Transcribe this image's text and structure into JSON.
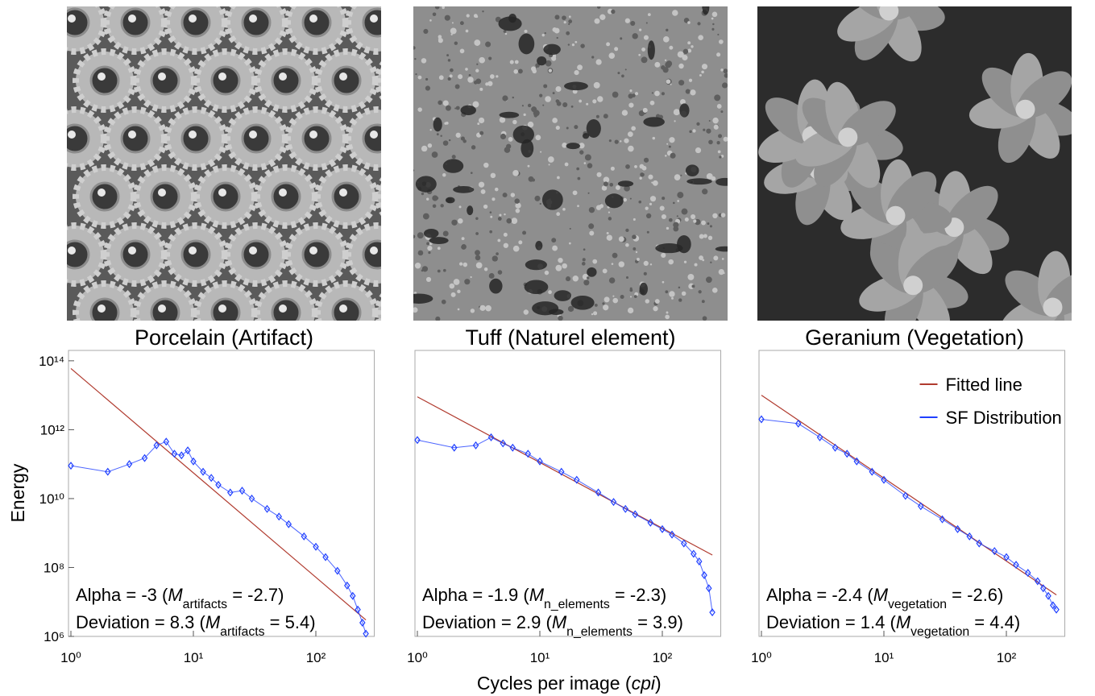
{
  "chart_data": [
    {
      "type": "line",
      "title": "Porcelain (Artifact)",
      "photo": "porcelain",
      "xlim": [
        1,
        300
      ],
      "ylim": [
        1000000,
        200000000000000
      ],
      "log_x": true,
      "log_y": true,
      "xticks": [
        {
          "value": 1,
          "label": "10⁰"
        },
        {
          "value": 10,
          "label": "10¹"
        },
        {
          "value": 100,
          "label": "10²"
        }
      ],
      "yticks": [
        {
          "value": 1000000,
          "label": "10⁶"
        },
        {
          "value": 100000000,
          "label": "10⁸"
        },
        {
          "value": 10000000000,
          "label": "10¹⁰"
        },
        {
          "value": 1000000000000,
          "label": "10¹²"
        },
        {
          "value": 100000000000000,
          "label": "10¹⁴"
        }
      ],
      "ylabel": "Energy",
      "series": [
        {
          "name": "Fitted line",
          "color": "#b03a2e",
          "x": [
            1,
            256
          ],
          "values": [
            60000000000000,
            3000000
          ]
        },
        {
          "name": "SF Distribution",
          "color": "#1f3fff",
          "marker": "diamond",
          "x": [
            1,
            2,
            3,
            4,
            5,
            6,
            7,
            8,
            9,
            10,
            12,
            14,
            16,
            20,
            25,
            30,
            40,
            50,
            60,
            80,
            100,
            120,
            150,
            180,
            200,
            220,
            240,
            256
          ],
          "values": [
            90000000000,
            60000000000,
            100000000000,
            150000000000,
            350000000000,
            450000000000,
            200000000000,
            180000000000,
            250000000000,
            120000000000,
            60000000000,
            40000000000,
            25000000000,
            15000000000,
            17000000000,
            10000000000,
            5000000000,
            3000000000,
            1800000000,
            800000000,
            400000000,
            200000000,
            80000000,
            30000000,
            15000000,
            6000000,
            2500000,
            1200000
          ]
        }
      ],
      "annotations": [
        [
          {
            "text": "Alpha = -3 ("
          },
          {
            "text": "M",
            "style": "italic"
          },
          {
            "text": "artifacts",
            "style": "sub"
          },
          {
            "text": " = -2.7)"
          }
        ],
        [
          {
            "text": "Deviation = 8.3 ("
          },
          {
            "text": "M",
            "style": "italic"
          },
          {
            "text": "artifacts",
            "style": "sub"
          },
          {
            "text": " = 5.4)"
          }
        ]
      ]
    },
    {
      "type": "line",
      "title": "Tuff (Naturel element)",
      "photo": "tuff",
      "xlim": [
        1,
        300
      ],
      "ylim": [
        1000000,
        200000000000000
      ],
      "log_x": true,
      "log_y": true,
      "xticks": [
        {
          "value": 1,
          "label": "10⁰"
        },
        {
          "value": 10,
          "label": "10¹"
        },
        {
          "value": 100,
          "label": "10²"
        }
      ],
      "xlabel": [
        {
          "text": "Cycles per image ("
        },
        {
          "text": "cpi",
          "style": "italic"
        },
        {
          "text": ")"
        }
      ],
      "series": [
        {
          "name": "Fitted line",
          "color": "#b03a2e",
          "x": [
            1,
            256
          ],
          "values": [
            9000000000000,
            230000000
          ]
        },
        {
          "name": "SF Distribution",
          "color": "#1f3fff",
          "marker": "diamond",
          "x": [
            1,
            2,
            3,
            4,
            5,
            6,
            8,
            10,
            15,
            20,
            30,
            40,
            50,
            60,
            80,
            100,
            120,
            150,
            180,
            200,
            220,
            240,
            256
          ],
          "values": [
            500000000000,
            300000000000,
            350000000000,
            600000000000,
            400000000000,
            300000000000,
            200000000000,
            120000000000,
            60000000000,
            35000000000,
            15000000000,
            8000000000,
            5000000000,
            3500000000,
            2000000000,
            1300000000,
            900000000,
            500000000,
            250000000,
            150000000,
            60000000,
            25000000,
            5000000
          ]
        }
      ],
      "annotations": [
        [
          {
            "text": "Alpha = -1.9 ("
          },
          {
            "text": "M",
            "style": "italic"
          },
          {
            "text": "n_elements",
            "style": "sub"
          },
          {
            "text": " = -2.3)"
          }
        ],
        [
          {
            "text": "Deviation = 2.9 ("
          },
          {
            "text": "M",
            "style": "italic"
          },
          {
            "text": "n_elements",
            "style": "sub"
          },
          {
            "text": " = 3.9)"
          }
        ]
      ]
    },
    {
      "type": "line",
      "title": "Geranium (Vegetation)",
      "photo": "geranium",
      "xlim": [
        1,
        300
      ],
      "ylim": [
        1000000,
        200000000000000
      ],
      "log_x": true,
      "log_y": true,
      "xticks": [
        {
          "value": 1,
          "label": "10⁰"
        },
        {
          "value": 10,
          "label": "10¹"
        },
        {
          "value": 100,
          "label": "10²"
        }
      ],
      "legend": "top-right",
      "series": [
        {
          "name": "Fitted line",
          "color": "#b03a2e",
          "x": [
            1,
            256
          ],
          "values": [
            10000000000000,
            16000000
          ]
        },
        {
          "name": "SF Distribution",
          "color": "#1f3fff",
          "marker": "diamond",
          "x": [
            1,
            2,
            3,
            4,
            5,
            6,
            8,
            10,
            15,
            20,
            30,
            40,
            50,
            60,
            80,
            100,
            120,
            150,
            180,
            200,
            220,
            240,
            256
          ],
          "values": [
            2000000000000,
            1500000000000,
            600000000000,
            300000000000,
            200000000000,
            120000000000,
            60000000000,
            35000000000,
            12000000000,
            6000000000,
            2500000000,
            1300000000,
            800000000,
            500000000,
            300000000,
            200000000,
            120000000,
            70000000,
            40000000,
            25000000,
            15000000,
            8000000,
            6000000
          ]
        }
      ],
      "annotations": [
        [
          {
            "text": "Alpha = -2.4 ("
          },
          {
            "text": "M",
            "style": "italic"
          },
          {
            "text": "vegetation",
            "style": "sub"
          },
          {
            "text": " = -2.6)"
          }
        ],
        [
          {
            "text": "Deviation = 1.4 ("
          },
          {
            "text": "M",
            "style": "italic"
          },
          {
            "text": "vegetation",
            "style": "sub"
          },
          {
            "text": " = 4.4)"
          }
        ]
      ]
    }
  ]
}
